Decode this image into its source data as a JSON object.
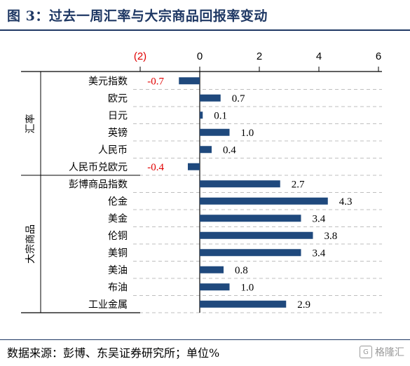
{
  "header": {
    "title": "图 3：过去一周汇率与大宗商品回报率变动"
  },
  "footer": {
    "source": "数据来源：彭博、东吴证券研究所；单位%",
    "watermark": "格隆汇"
  },
  "colors": {
    "bar": "#1f497d",
    "negative": "#e00000",
    "title": "#1f3864",
    "grid": "#bfbfbf"
  },
  "chart_data": {
    "type": "bar",
    "orientation": "horizontal",
    "xlim": [
      -2,
      6
    ],
    "xticks": [
      -2,
      0,
      2,
      4,
      6
    ],
    "xtick_labels": [
      "(2)",
      "0",
      "2",
      "4",
      "6"
    ],
    "grid": true,
    "categories": [
      "美元指数",
      "欧元",
      "日元",
      "英镑",
      "人民币",
      "人民币兑欧元",
      "彭博商品指数",
      "伦金",
      "美金",
      "伦铜",
      "美铜",
      "美油",
      "布油",
      "工业金属"
    ],
    "values": [
      -0.7,
      0.7,
      0.1,
      1.0,
      0.4,
      -0.4,
      2.7,
      4.3,
      3.4,
      3.8,
      3.4,
      0.8,
      1.0,
      2.9
    ],
    "value_labels": [
      "-0.7",
      "0.7",
      "0.1",
      "1.0",
      "0.4",
      "-0.4",
      "2.7",
      "4.3",
      "3.4",
      "3.8",
      "3.4",
      "0.8",
      "1.0",
      "2.9"
    ],
    "groups": [
      {
        "name": "汇率",
        "start": 0,
        "end": 5
      },
      {
        "name": "大宗商品",
        "start": 6,
        "end": 13
      }
    ]
  }
}
